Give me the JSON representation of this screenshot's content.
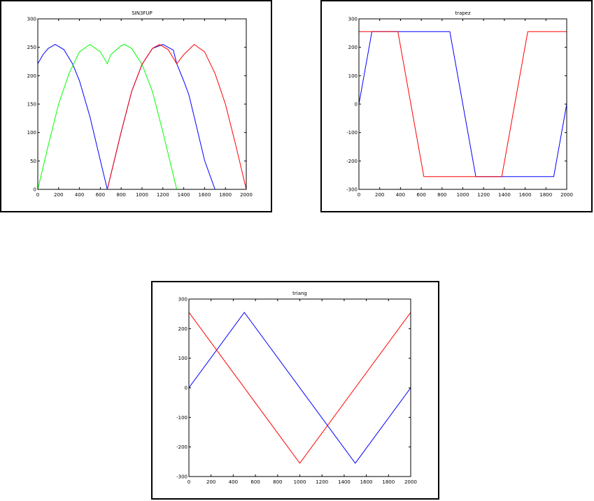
{
  "chart_data": [
    {
      "type": "line",
      "title": "SIN3FUP",
      "xlim": [
        0,
        2000
      ],
      "ylim": [
        0,
        300
      ],
      "xticks": [
        0,
        200,
        400,
        600,
        800,
        1000,
        1200,
        1400,
        1600,
        1800,
        2000
      ],
      "yticks": [
        0,
        50,
        100,
        150,
        200,
        250,
        300
      ],
      "grid": false,
      "series": [
        {
          "color": "#0000ff",
          "x": [
            0,
            50,
            100,
            167,
            250,
            333,
            400,
            500,
            600,
            667,
            700,
            800,
            900,
            1000,
            1100,
            1200,
            1300,
            1333,
            1400,
            1450,
            1500,
            1600,
            1700,
            1750,
            1833,
            1900,
            1950,
            2000
          ],
          "y": [
            221,
            237,
            248,
            255,
            246,
            221,
            191,
            128,
            51,
            0,
            25,
            101,
            172,
            220,
            248,
            255,
            245,
            221,
            191,
            166,
            128,
            51,
            0,
            0,
            0,
            0,
            0,
            0
          ]
        },
        {
          "color": "#00ff00",
          "x": [
            0,
            100,
            200,
            300,
            400,
            500,
            600,
            667,
            700,
            800,
            833,
            900,
            1000,
            1100,
            1200,
            1300,
            1333,
            1400,
            1500,
            1600,
            1700,
            1800,
            1900,
            2000
          ],
          "y": [
            0,
            77,
            150,
            204,
            242,
            255,
            242,
            221,
            237,
            253,
            255,
            248,
            220,
            172,
            101,
            25,
            0,
            0,
            0,
            0,
            0,
            0,
            0,
            0
          ]
        },
        {
          "color": "#ff0000",
          "x": [
            0,
            100,
            200,
            300,
            400,
            500,
            600,
            667,
            700,
            800,
            900,
            1000,
            1100,
            1167,
            1250,
            1333,
            1400,
            1500,
            1600,
            1700,
            1800,
            1900,
            2000
          ],
          "y": [
            0,
            0,
            0,
            0,
            0,
            0,
            0,
            0,
            25,
            101,
            172,
            220,
            248,
            255,
            246,
            221,
            237,
            255,
            242,
            204,
            150,
            77,
            0
          ]
        }
      ]
    },
    {
      "type": "line",
      "title": "trapez",
      "xlim": [
        0,
        2000
      ],
      "ylim": [
        -300,
        300
      ],
      "xticks": [
        0,
        200,
        400,
        600,
        800,
        1000,
        1200,
        1400,
        1600,
        1800,
        2000
      ],
      "yticks": [
        -300,
        -200,
        -100,
        0,
        100,
        200,
        300
      ],
      "grid": false,
      "series": [
        {
          "color": "#0000ff",
          "x": [
            0,
            125,
            875,
            1125,
            1875,
            2000
          ],
          "y": [
            0,
            255,
            255,
            -255,
            -255,
            0
          ]
        },
        {
          "color": "#ff0000",
          "x": [
            0,
            375,
            625,
            1375,
            1625,
            2000
          ],
          "y": [
            255,
            255,
            -255,
            -255,
            255,
            255
          ]
        }
      ]
    },
    {
      "type": "line",
      "title": "triang",
      "xlim": [
        0,
        2000
      ],
      "ylim": [
        -300,
        300
      ],
      "xticks": [
        0,
        200,
        400,
        600,
        800,
        1000,
        1200,
        1400,
        1600,
        1800,
        2000
      ],
      "yticks": [
        -300,
        -200,
        -100,
        0,
        100,
        200,
        300
      ],
      "grid": false,
      "series": [
        {
          "color": "#0000ff",
          "x": [
            0,
            500,
            1500,
            2000
          ],
          "y": [
            0,
            255,
            -255,
            0
          ]
        },
        {
          "color": "#ff0000",
          "x": [
            0,
            1000,
            2000
          ],
          "y": [
            255,
            -255,
            255
          ]
        }
      ]
    }
  ]
}
